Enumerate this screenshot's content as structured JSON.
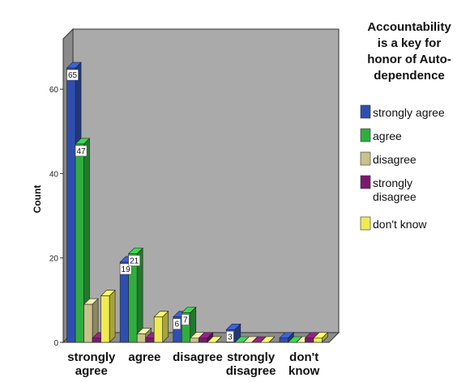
{
  "chart_data": {
    "type": "bar",
    "subtype": "3d-clustered",
    "categories": [
      "strongly agree",
      "agree",
      "disagree",
      "strongly disagree",
      "don't know"
    ],
    "series": [
      {
        "name": "strongly agree",
        "color": "#2f4fb0",
        "values": [
          65,
          19,
          6,
          3,
          1
        ]
      },
      {
        "name": "agree",
        "color": "#2fae3f",
        "values": [
          47,
          21,
          7,
          0,
          0
        ]
      },
      {
        "name": "disagree",
        "color": "#c9c28a",
        "values": [
          9,
          2,
          1,
          0,
          0
        ]
      },
      {
        "name": "strongly disagree",
        "color": "#7a1a6e",
        "values": [
          1,
          1,
          1,
          0,
          1
        ]
      },
      {
        "name": "don't know",
        "color": "#f0ea52",
        "values": [
          11,
          6,
          0,
          0,
          1
        ]
      }
    ],
    "data_labels": [
      {
        "series": 0,
        "category": 0,
        "text": "65"
      },
      {
        "series": 1,
        "category": 0,
        "text": "47"
      },
      {
        "series": 0,
        "category": 1,
        "text": "19"
      },
      {
        "series": 1,
        "category": 1,
        "text": "21"
      },
      {
        "series": 0,
        "category": 2,
        "text": "6"
      },
      {
        "series": 1,
        "category": 2,
        "text": "7"
      },
      {
        "series": 0,
        "category": 3,
        "text": "3"
      }
    ],
    "ylabel": "Count",
    "ylim": [
      0,
      70
    ],
    "yticks": [
      0,
      20,
      40,
      60
    ],
    "grid": false,
    "wall_color": "#aaaaaa",
    "floor_color": "#8c8c8c",
    "legend": {
      "title": [
        "Accountability",
        "is a key for",
        "honor of Auto-",
        "dependence"
      ],
      "placement": "right",
      "entries": [
        [
          "strongly agree"
        ],
        [
          "agree"
        ],
        [
          "disagree"
        ],
        [
          "strongly",
          "disagree"
        ],
        [
          "don't know"
        ]
      ]
    },
    "category_label_lines": [
      [
        "strongly",
        "agree"
      ],
      [
        "agree"
      ],
      [
        "disagree"
      ],
      [
        "strongly",
        "disagree"
      ],
      [
        "don't",
        "know"
      ]
    ]
  }
}
